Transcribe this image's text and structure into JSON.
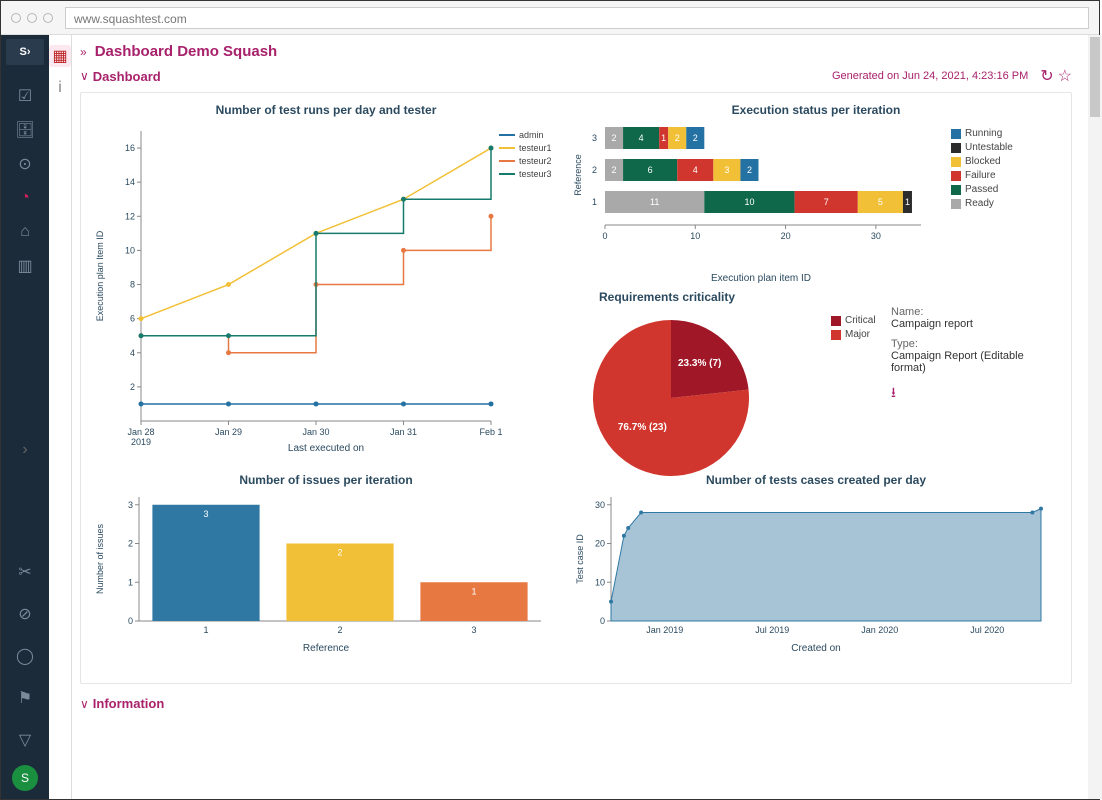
{
  "url": "www.squashtest.com",
  "page_title": "Dashboard Demo Squash",
  "section": "Dashboard",
  "generated_text": "Generated on Jun 24, 2021, 4:23:16 PM",
  "info_section": "Information",
  "colors": {
    "brand": "#a8216b",
    "sidebar_bg": "#1c2b3a",
    "blue": "#2471a3",
    "yellow": "#f2c037",
    "orange": "#e77842",
    "teal": "#167a6c",
    "darkred": "#a01827",
    "red": "#d0362d",
    "green": "#10684b",
    "grey": "#a9a9a9",
    "black": "#2c2c2c",
    "lightblue_fill": "#a7c4d6",
    "axis_text": "#2b4a5f"
  },
  "line_chart": {
    "title": "Number of test runs per day and tester",
    "xlabel": "Last executed on",
    "ylabel": "Execution plan Item ID",
    "x_categories": [
      "Jan 28",
      "Jan 29",
      "Jan 30",
      "Jan 31",
      "Feb 1"
    ],
    "x_sublabels": [
      "2019",
      "",
      "",
      "",
      ""
    ],
    "y_ticks": [
      2,
      4,
      6,
      8,
      10,
      12,
      14,
      16
    ],
    "series": [
      {
        "name": "admin",
        "color": "#2471a3",
        "values": [
          1,
          1,
          1,
          1,
          1
        ],
        "step": false
      },
      {
        "name": "testeur1",
        "color": "#f2c037",
        "values": [
          6,
          8,
          11,
          13,
          16
        ],
        "step": false
      },
      {
        "name": "testeur2",
        "color": "#e77842",
        "values": [
          5,
          4,
          8,
          10,
          12
        ],
        "step": true
      },
      {
        "name": "testeur3",
        "color": "#167a6c",
        "values": [
          5,
          5,
          11,
          13,
          16
        ],
        "step": true
      }
    ]
  },
  "stacked_chart": {
    "title": "Execution status per iteration",
    "xlabel": "Execution plan item ID",
    "ylabel": "Reference",
    "x_ticks": [
      0,
      10,
      20,
      30
    ],
    "categories": [
      "1",
      "2",
      "3"
    ],
    "statuses": [
      {
        "name": "Running",
        "color": "#2471a3"
      },
      {
        "name": "Untestable",
        "color": "#2c2c2c"
      },
      {
        "name": "Blocked",
        "color": "#f2c037"
      },
      {
        "name": "Failure",
        "color": "#d0362d"
      },
      {
        "name": "Passed",
        "color": "#10684b"
      },
      {
        "name": "Ready",
        "color": "#a9a9a9"
      }
    ],
    "rows": [
      {
        "ref": "3",
        "segments": [
          {
            "c": "#a9a9a9",
            "v": 2
          },
          {
            "c": "#10684b",
            "v": 4
          },
          {
            "c": "#d0362d",
            "v": 1
          },
          {
            "c": "#f2c037",
            "v": 2
          },
          {
            "c": "#2471a3",
            "v": 2
          }
        ]
      },
      {
        "ref": "2",
        "segments": [
          {
            "c": "#a9a9a9",
            "v": 2
          },
          {
            "c": "#10684b",
            "v": 6
          },
          {
            "c": "#d0362d",
            "v": 4
          },
          {
            "c": "#f2c037",
            "v": 3
          },
          {
            "c": "#2471a3",
            "v": 2
          }
        ]
      },
      {
        "ref": "1",
        "segments": [
          {
            "c": "#a9a9a9",
            "v": 11
          },
          {
            "c": "#10684b",
            "v": 10
          },
          {
            "c": "#d0362d",
            "v": 7
          },
          {
            "c": "#f2c037",
            "v": 5
          },
          {
            "c": "#2c2c2c",
            "v": 1
          }
        ]
      }
    ]
  },
  "pie_chart": {
    "title": "Requirements criticality",
    "legend": [
      {
        "name": "Critical",
        "color": "#a01827"
      },
      {
        "name": "Major",
        "color": "#d0362d"
      }
    ],
    "slices": [
      {
        "label": "23.3% (7)",
        "color": "#a01827",
        "pct": 23.3
      },
      {
        "label": "76.7% (23)",
        "color": "#d0362d",
        "pct": 76.7
      }
    ],
    "report": {
      "name_label": "Name:",
      "name": "Campaign report",
      "type_label": "Type:",
      "type": "Campaign Report (Editable format)"
    }
  },
  "bar_chart": {
    "title": "Number of issues per iteration",
    "xlabel": "Reference",
    "ylabel": "Number of issues",
    "y_ticks": [
      0,
      1,
      2,
      3
    ],
    "bars": [
      {
        "x": "1",
        "v": 3,
        "c": "#2f78a3"
      },
      {
        "x": "2",
        "v": 2,
        "c": "#f2c037"
      },
      {
        "x": "3",
        "v": 1,
        "c": "#e77842"
      }
    ]
  },
  "area_chart": {
    "title": "Number of tests cases created per day",
    "xlabel": "Created on",
    "ylabel": "Test case ID",
    "x_categories": [
      "Jan 2019",
      "Jul 2019",
      "Jan 2020",
      "Jul 2020"
    ],
    "y_ticks": [
      0,
      10,
      20,
      30
    ],
    "points": [
      {
        "x": 0,
        "y": 5
      },
      {
        "x": 0.03,
        "y": 22
      },
      {
        "x": 0.04,
        "y": 24
      },
      {
        "x": 0.07,
        "y": 28
      },
      {
        "x": 0.98,
        "y": 28
      },
      {
        "x": 1.0,
        "y": 29
      }
    ]
  }
}
